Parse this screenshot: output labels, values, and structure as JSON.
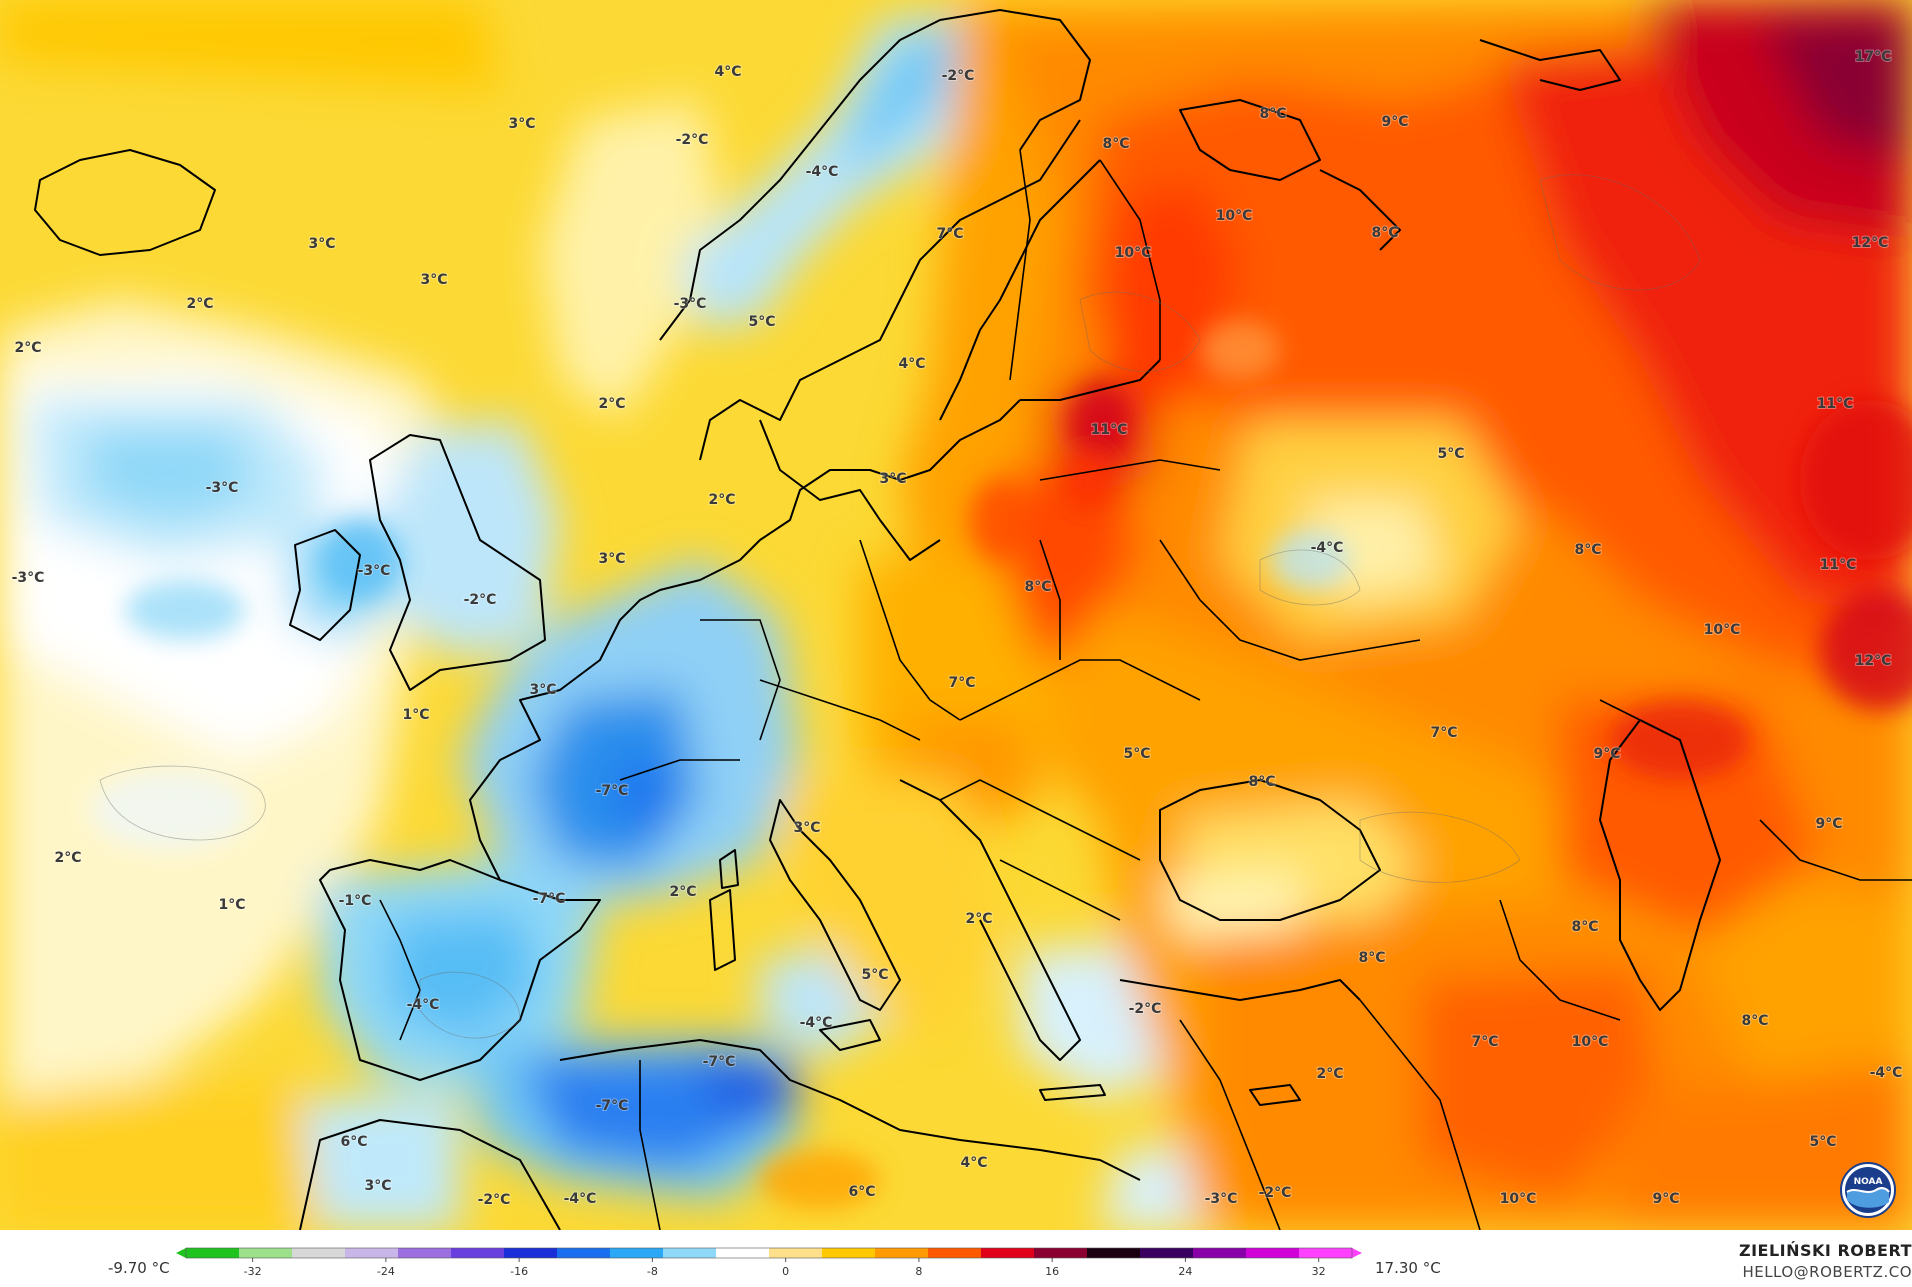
{
  "map": {
    "labels": [
      {
        "text": "4°C"
      },
      {
        "text": "3°C"
      },
      {
        "text": "-2°C"
      },
      {
        "text": "3°C"
      },
      {
        "text": "3°C"
      },
      {
        "text": "2°C"
      },
      {
        "text": "2°C"
      },
      {
        "text": "-2°C"
      },
      {
        "text": "-4°C"
      },
      {
        "text": "-3°C"
      },
      {
        "text": "5°C"
      },
      {
        "text": "4°C"
      },
      {
        "text": "2°C"
      },
      {
        "text": "-3°C"
      },
      {
        "text": "-3°C"
      },
      {
        "text": "-3°C"
      },
      {
        "text": "-2°C"
      },
      {
        "text": "3°C"
      },
      {
        "text": "2°C"
      },
      {
        "text": "3°C"
      },
      {
        "text": "3°C"
      },
      {
        "text": "1°C"
      },
      {
        "text": "-7°C"
      },
      {
        "text": "2°C"
      },
      {
        "text": "1°C"
      },
      {
        "text": "-1°C"
      },
      {
        "text": "-7°C"
      },
      {
        "text": "2°C"
      },
      {
        "text": "3°C"
      },
      {
        "text": "-4°C"
      },
      {
        "text": "-7°C"
      },
      {
        "text": "-7°C"
      },
      {
        "text": "-4°C"
      },
      {
        "text": "6°C"
      },
      {
        "text": "3°C"
      },
      {
        "text": "-2°C"
      },
      {
        "text": "-4°C"
      },
      {
        "text": "5°C"
      },
      {
        "text": "2°C"
      },
      {
        "text": "-2°C"
      },
      {
        "text": "6°C"
      },
      {
        "text": "4°C"
      },
      {
        "text": "-3°C"
      },
      {
        "text": "-2°C"
      },
      {
        "text": "2°C"
      },
      {
        "text": "8°C"
      },
      {
        "text": "9°C"
      },
      {
        "text": "8°C"
      },
      {
        "text": "17°C"
      },
      {
        "text": "10°C"
      },
      {
        "text": "10°C"
      },
      {
        "text": "8°C"
      },
      {
        "text": "7°C"
      },
      {
        "text": "12°C"
      },
      {
        "text": "11°C"
      },
      {
        "text": "11°C"
      },
      {
        "text": "5°C"
      },
      {
        "text": "-4°C"
      },
      {
        "text": "8°C"
      },
      {
        "text": "11°C"
      },
      {
        "text": "8°C"
      },
      {
        "text": "10°C"
      },
      {
        "text": "7°C"
      },
      {
        "text": "12°C"
      },
      {
        "text": "7°C"
      },
      {
        "text": "9°C"
      },
      {
        "text": "5°C"
      },
      {
        "text": "8°C"
      },
      {
        "text": "9°C"
      },
      {
        "text": "8°C"
      },
      {
        "text": "8°C"
      },
      {
        "text": "7°C"
      },
      {
        "text": "10°C"
      },
      {
        "text": "8°C"
      },
      {
        "text": "-4°C"
      },
      {
        "text": "5°C"
      },
      {
        "text": "10°C"
      },
      {
        "text": "9°C"
      }
    ]
  },
  "legend": {
    "min_label": "-9.70 °C",
    "max_label": "17.30 °C",
    "ticks": [
      "-32",
      "-24",
      "-16",
      "-8",
      "0",
      "8",
      "16",
      "24",
      "32"
    ],
    "tick_values": [
      -32,
      -24,
      -16,
      -8,
      0,
      8,
      16,
      24,
      32
    ],
    "range": [
      -36,
      34
    ],
    "colors": [
      "#1fc41f",
      "#9ce08c",
      "#d8d8d8",
      "#c9b6e8",
      "#9c6fe0",
      "#6a3fe0",
      "#1a2fd8",
      "#1a6ff0",
      "#2aa7f5",
      "#8fd8f8",
      "#ffffff",
      "#ffe08a",
      "#ffc800",
      "#ff9a00",
      "#ff5a00",
      "#e0001a",
      "#8a0030",
      "#1a0010",
      "#3a0060",
      "#8a00a8",
      "#d000d8",
      "#ff40ff"
    ]
  },
  "author": {
    "name": "ZIELIŃSKI ROBERT",
    "contact": "HELLO@ROBERTZ.CO"
  },
  "logo": {
    "icon": "noaa-logo-icon",
    "text": "NOAA"
  }
}
